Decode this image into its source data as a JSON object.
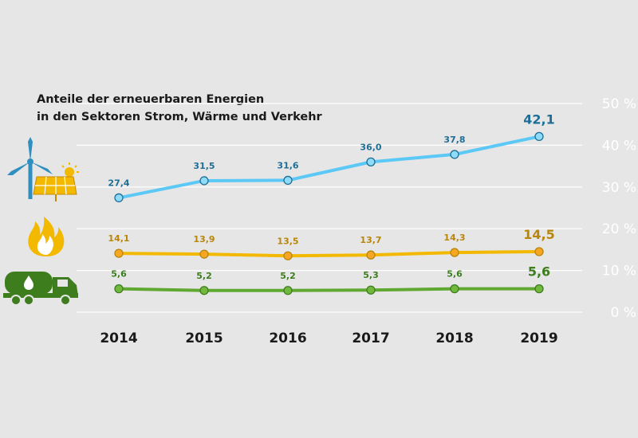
{
  "chart_data": {
    "type": "line",
    "title": "Anteile der erneuerbaren Energien",
    "subtitle": "in den Sektoren Strom, Wärme und Verkehr",
    "categories": [
      "2014",
      "2015",
      "2016",
      "2017",
      "2018",
      "2019"
    ],
    "ylim": [
      0,
      50
    ],
    "yticks": [
      0,
      10,
      20,
      30,
      40,
      50
    ],
    "ytick_labels": [
      "0 %",
      "10 %",
      "20 %",
      "30 %",
      "40 %",
      "50 %"
    ],
    "grid": true,
    "series": [
      {
        "name": "Strom",
        "icon": "wind-solar-icon",
        "color": "#5bc8f5",
        "marker_color": "#8fdcfa",
        "label_color": "#1e6e96",
        "values": [
          27.4,
          31.5,
          31.6,
          36.0,
          37.8,
          42.1
        ],
        "labels": [
          "27,4",
          "31,5",
          "31,6",
          "36,0",
          "37,8",
          "42,1"
        ]
      },
      {
        "name": "Wärme",
        "icon": "flame-icon",
        "color": "#f3b800",
        "marker_color": "#f6a623",
        "label_color": "#b8860b",
        "values": [
          14.1,
          13.9,
          13.5,
          13.7,
          14.3,
          14.5
        ],
        "labels": [
          "14,1",
          "13,9",
          "13,5",
          "13,7",
          "14,3",
          "14,5"
        ]
      },
      {
        "name": "Verkehr",
        "icon": "tanker-truck-icon",
        "color": "#5fa831",
        "marker_color": "#72b83d",
        "label_color": "#3d7d1e",
        "values": [
          5.6,
          5.2,
          5.2,
          5.3,
          5.6,
          5.6
        ],
        "labels": [
          "5,6",
          "5,2",
          "5,2",
          "5,3",
          "5,6",
          "5,6"
        ]
      }
    ]
  }
}
